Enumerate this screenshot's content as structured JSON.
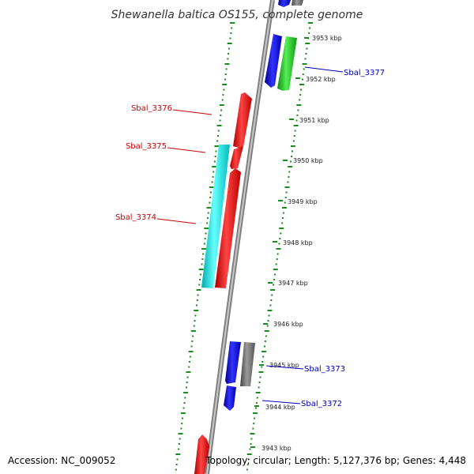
{
  "title": "Shewanella baltica OS155, complete genome",
  "footer": {
    "accession": "Accession: NC_009052",
    "topology": "Topology: circular; Length: 5,127,376 bp; Genes: 4,448"
  },
  "colors": {
    "backbone": "#8a8a8a",
    "track_dots": "#1a8c1a",
    "reverse_label": "#cc0000",
    "forward_label": "#0000bb",
    "blue_gene": "#0000ee",
    "green_gene": "#22cc22",
    "red_gene": "#ff0000",
    "cyan_gene": "#00eeee",
    "gray_gene": "#777777"
  },
  "kbp_ticks": [
    "3953 kbp",
    "3952 kbp",
    "3951 kbp",
    "3950 kbp",
    "3949 kbp",
    "3948 kbp",
    "3947 kbp",
    "3946 kbp",
    "3945 kbp",
    "3944 kbp",
    "3943 kbp"
  ],
  "gene_labels": {
    "sbal_3377": "Sbal_3377",
    "sbal_3376": "Sbal_3376",
    "sbal_3375": "Sbal_3375",
    "sbal_3374": "Sbal_3374",
    "sbal_3373": "Sbal_3373",
    "sbal_3372": "Sbal_3372"
  }
}
